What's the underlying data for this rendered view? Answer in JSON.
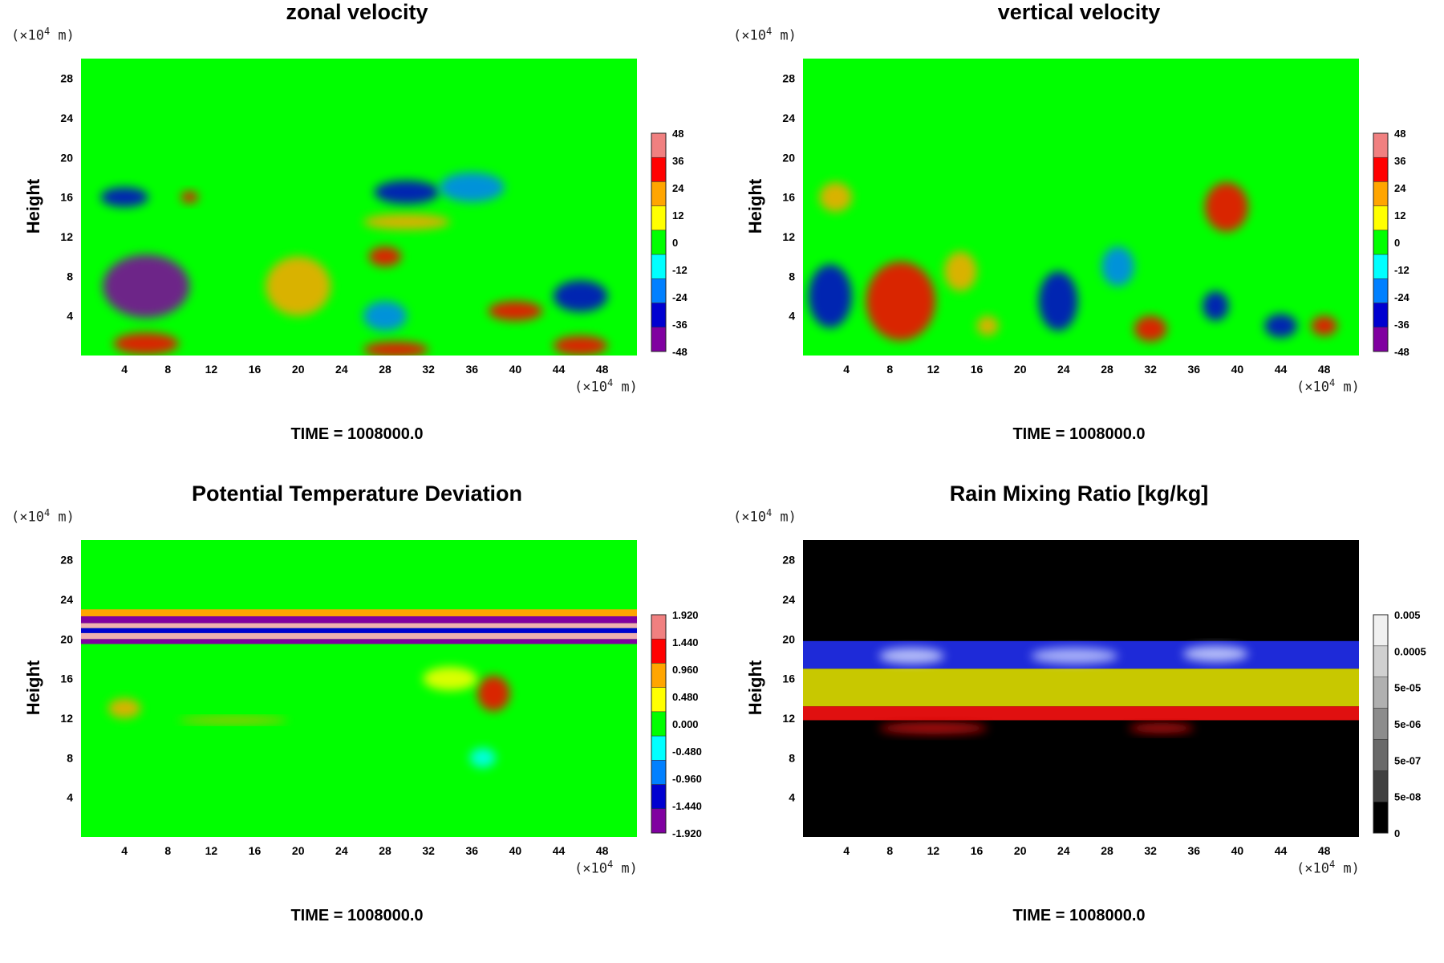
{
  "figure": {
    "y_unit_label": "(×10",
    "y_unit_exp": "4",
    "y_unit_tail": " m)",
    "x_unit_label": "(×10",
    "x_unit_exp": "4",
    "x_unit_tail": " m)"
  },
  "chart_data": [
    {
      "type": "heatmap",
      "title": "zonal velocity",
      "xlabel": "(×10^4 m)",
      "ylabel": "Height",
      "y_unit": "(×10^4 m)",
      "x_ticks": [
        4,
        8,
        12,
        16,
        20,
        24,
        28,
        32,
        36,
        40,
        44,
        48
      ],
      "y_ticks": [
        4,
        8,
        12,
        16,
        20,
        24,
        28
      ],
      "xlim": [
        0,
        51.2
      ],
      "ylim": [
        0,
        30
      ],
      "colorbar": {
        "labels": [
          "48",
          "36",
          "24",
          "12",
          "0",
          "-12",
          "-24",
          "-36",
          "-48"
        ],
        "colors": [
          "#f08080",
          "#ff0000",
          "#ffa500",
          "#ffff00",
          "#00ff00",
          "#00ffff",
          "#0080ff",
          "#0000d0",
          "#8000a0"
        ]
      },
      "background": "#00ff00",
      "time_label": "TIME = 1008000.0",
      "features": [
        {
          "x": 6,
          "y": 7,
          "rx": 4,
          "ry": 3.2,
          "v": -48
        },
        {
          "x": 20,
          "y": 7,
          "rx": 3,
          "ry": 3,
          "v": 24
        },
        {
          "x": 28,
          "y": 10,
          "rx": 1.5,
          "ry": 1,
          "v": 30
        },
        {
          "x": 30,
          "y": 13.5,
          "rx": 4,
          "ry": 0.8,
          "v": 24
        },
        {
          "x": 30,
          "y": 16.5,
          "rx": 3,
          "ry": 1.2,
          "v": -36
        },
        {
          "x": 40,
          "y": 4.5,
          "rx": 2.5,
          "ry": 1,
          "v": 36
        },
        {
          "x": 46,
          "y": 6,
          "rx": 2.5,
          "ry": 1.6,
          "v": -36
        },
        {
          "x": 6,
          "y": 1.2,
          "rx": 3,
          "ry": 1.1,
          "v": 40
        },
        {
          "x": 29,
          "y": 0.6,
          "rx": 3,
          "ry": 0.8,
          "v": 40
        },
        {
          "x": 46,
          "y": 1,
          "rx": 2.5,
          "ry": 1,
          "v": 36
        },
        {
          "x": 4,
          "y": 16,
          "rx": 2.2,
          "ry": 1,
          "v": -36
        },
        {
          "x": 36,
          "y": 17,
          "rx": 3,
          "ry": 1.5,
          "v": -24
        },
        {
          "x": 10,
          "y": 16,
          "rx": 0.8,
          "ry": 0.6,
          "v": 30
        },
        {
          "x": 28,
          "y": 4,
          "rx": 2,
          "ry": 1.5,
          "v": -24
        }
      ]
    },
    {
      "type": "heatmap",
      "title": "vertical velocity",
      "xlabel": "(×10^4 m)",
      "ylabel": "Height",
      "y_unit": "(×10^4 m)",
      "x_ticks": [
        4,
        8,
        12,
        16,
        20,
        24,
        28,
        32,
        36,
        40,
        44,
        48
      ],
      "y_ticks": [
        4,
        8,
        12,
        16,
        20,
        24,
        28
      ],
      "xlim": [
        0,
        51.2
      ],
      "ylim": [
        0,
        30
      ],
      "colorbar": {
        "labels": [
          "48",
          "36",
          "24",
          "12",
          "0",
          "-12",
          "-24",
          "-36",
          "-48"
        ],
        "colors": [
          "#f08080",
          "#ff0000",
          "#ffa500",
          "#ffff00",
          "#00ff00",
          "#00ffff",
          "#0080ff",
          "#0000d0",
          "#8000a0"
        ]
      },
      "background": "#00ff00",
      "time_label": "TIME = 1008000.0",
      "features": [
        {
          "x": 9,
          "y": 5.5,
          "rx": 3.2,
          "ry": 4,
          "v": 30
        },
        {
          "x": 2.5,
          "y": 6,
          "rx": 2,
          "ry": 3.2,
          "v": -40
        },
        {
          "x": 23.5,
          "y": 5.5,
          "rx": 1.8,
          "ry": 3,
          "v": -36
        },
        {
          "x": 32,
          "y": 2.7,
          "rx": 1.5,
          "ry": 1.3,
          "v": 30
        },
        {
          "x": 39,
          "y": 15,
          "rx": 2,
          "ry": 2.5,
          "v": 40
        },
        {
          "x": 38,
          "y": 5,
          "rx": 1.2,
          "ry": 1.5,
          "v": -40
        },
        {
          "x": 44,
          "y": 3,
          "rx": 1.5,
          "ry": 1.2,
          "v": -36
        },
        {
          "x": 48,
          "y": 3,
          "rx": 1.2,
          "ry": 1,
          "v": 30
        },
        {
          "x": 3,
          "y": 16,
          "rx": 1.5,
          "ry": 1.5,
          "v": 24
        },
        {
          "x": 17,
          "y": 3,
          "rx": 1,
          "ry": 1,
          "v": 24
        },
        {
          "x": 29,
          "y": 9,
          "rx": 1.5,
          "ry": 2,
          "v": -20
        },
        {
          "x": 14.5,
          "y": 8.5,
          "rx": 1.5,
          "ry": 2,
          "v": 20
        }
      ]
    },
    {
      "type": "heatmap",
      "title": "Potential Temperature Deviation",
      "xlabel": "(×10^4 m)",
      "ylabel": "Height",
      "y_unit": "(×10^4 m)",
      "x_ticks": [
        4,
        8,
        12,
        16,
        20,
        24,
        28,
        32,
        36,
        40,
        44,
        48
      ],
      "y_ticks": [
        4,
        8,
        12,
        16,
        20,
        24,
        28
      ],
      "xlim": [
        0,
        51.2
      ],
      "ylim": [
        0,
        30
      ],
      "colorbar": {
        "labels": [
          "1.920",
          "1.440",
          "0.960",
          "0.480",
          "0.000",
          "-0.480",
          "-0.960",
          "-1.440",
          "-1.920"
        ],
        "colors": [
          "#f08080",
          "#ff0000",
          "#ffa500",
          "#ffff00",
          "#00ff00",
          "#00ffff",
          "#0080ff",
          "#0000d0",
          "#8000a0"
        ]
      },
      "background": "#00ff00",
      "time_label": "TIME = 1008000.0",
      "bands": [
        {
          "y0": 22.3,
          "y1": 23.0,
          "color": "#ffa500"
        },
        {
          "y0": 21.6,
          "y1": 22.3,
          "color": "#8000a0"
        },
        {
          "y0": 21.1,
          "y1": 21.6,
          "color": "#f0b0b0"
        },
        {
          "y0": 20.6,
          "y1": 21.1,
          "color": "#0000d0"
        },
        {
          "y0": 20.0,
          "y1": 20.6,
          "color": "#f0b0b0"
        },
        {
          "y0": 19.5,
          "y1": 20.0,
          "color": "#8000a0"
        }
      ],
      "features": [
        {
          "x": 38,
          "y": 14.5,
          "rx": 1.5,
          "ry": 1.8,
          "v": 1.6
        },
        {
          "x": 34,
          "y": 16,
          "rx": 2.5,
          "ry": 1.2,
          "v": 0.6
        },
        {
          "x": 4,
          "y": 13,
          "rx": 1.5,
          "ry": 1,
          "v": 0.8
        },
        {
          "x": 14,
          "y": 11.8,
          "rx": 5,
          "ry": 0.3,
          "v": 0.9
        },
        {
          "x": 37,
          "y": 8,
          "rx": 1.2,
          "ry": 1,
          "v": -0.6
        }
      ]
    },
    {
      "type": "heatmap",
      "title": "Rain Mixing Ratio [kg/kg]",
      "xlabel": "(×10^4 m)",
      "ylabel": "Height",
      "y_unit": "(×10^4 m)",
      "x_ticks": [
        4,
        8,
        12,
        16,
        20,
        24,
        28,
        32,
        36,
        40,
        44,
        48
      ],
      "y_ticks": [
        4,
        8,
        12,
        16,
        20,
        24,
        28
      ],
      "xlim": [
        0,
        51.2
      ],
      "ylim": [
        0,
        30
      ],
      "colorbar": {
        "labels": [
          "0.005",
          "0.0005",
          "5e-05",
          "5e-06",
          "5e-07",
          "5e-08",
          "0"
        ],
        "colors": [
          "#f0f0f0",
          "#d0d0d0",
          "#b0b0b0",
          "#8c8c8c",
          "#6a6a6a",
          "#404040",
          "#000000"
        ]
      },
      "background": "#000000",
      "time_label": "TIME = 1008000.0",
      "bands": [
        {
          "y0": 17.0,
          "y1": 19.8,
          "color": "#1e2ad8"
        },
        {
          "y0": 13.2,
          "y1": 17.0,
          "color": "#c8c800"
        },
        {
          "y0": 11.8,
          "y1": 13.2,
          "color": "#e01010"
        }
      ],
      "features": [
        {
          "x": 12,
          "y": 11,
          "rx": 5,
          "ry": 0.6,
          "v": "#d01010"
        },
        {
          "x": 33,
          "y": 11,
          "rx": 3,
          "ry": 0.5,
          "v": "#d01010"
        },
        {
          "x": 10,
          "y": 18.3,
          "rx": 3,
          "ry": 0.8,
          "v": "#d0d8ff"
        },
        {
          "x": 25,
          "y": 18.3,
          "rx": 4,
          "ry": 0.8,
          "v": "#c0c8ff"
        },
        {
          "x": 38,
          "y": 18.5,
          "rx": 3,
          "ry": 0.8,
          "v": "#d0d8ff"
        }
      ]
    }
  ]
}
